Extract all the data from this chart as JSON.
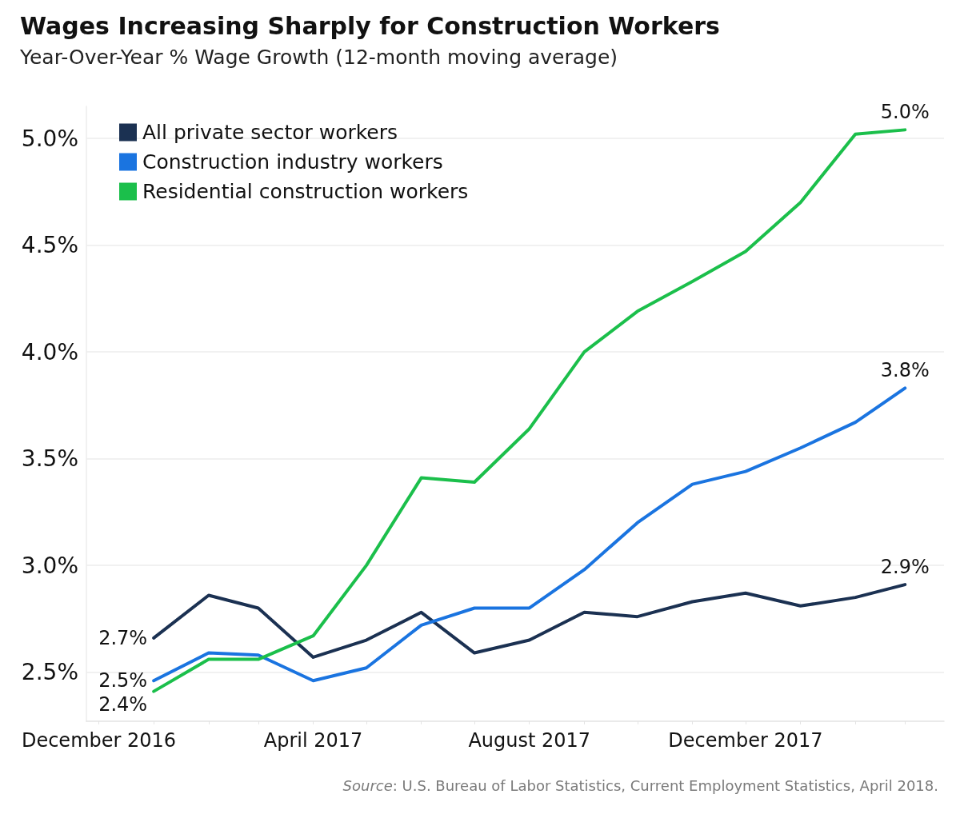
{
  "chart_data": {
    "type": "line",
    "title": "Wages Increasing Sharply for Construction Workers",
    "subtitle": "Year-Over-Year % Wage Growth (12-month moving average)",
    "x": [
      "2017-01",
      "2017-02",
      "2017-03",
      "2017-04",
      "2017-05",
      "2017-06",
      "2017-07",
      "2017-08",
      "2017-09",
      "2017-10",
      "2017-11",
      "2017-12",
      "2018-01",
      "2018-02",
      "2018-03"
    ],
    "series": [
      {
        "name": "All private sector workers",
        "color": "#1b3152",
        "values": [
          2.66,
          2.86,
          2.8,
          2.57,
          2.65,
          2.78,
          2.59,
          2.65,
          2.78,
          2.76,
          2.83,
          2.87,
          2.81,
          2.85,
          2.91
        ],
        "value_labels": [
          "2.7%",
          null,
          null,
          null,
          null,
          null,
          null,
          null,
          null,
          null,
          null,
          null,
          null,
          null,
          "2.9%"
        ]
      },
      {
        "name": "Construction industry workers",
        "color": "#1a74e0",
        "values": [
          2.46,
          2.59,
          2.58,
          2.46,
          2.52,
          2.72,
          2.8,
          2.8,
          2.98,
          3.2,
          3.38,
          3.44,
          3.55,
          3.67,
          3.83
        ],
        "value_labels": [
          "2.5%",
          null,
          null,
          null,
          null,
          null,
          null,
          null,
          null,
          null,
          null,
          null,
          null,
          null,
          "3.8%"
        ]
      },
      {
        "name": "Residential construction workers",
        "color": "#1bbf4b",
        "values": [
          2.41,
          2.56,
          2.56,
          2.67,
          3.0,
          3.41,
          3.39,
          3.64,
          4.0,
          4.19,
          4.33,
          4.47,
          4.7,
          5.02,
          5.04
        ],
        "value_labels": [
          "2.4%",
          null,
          null,
          null,
          null,
          null,
          null,
          null,
          null,
          null,
          null,
          null,
          null,
          null,
          "5.0%"
        ]
      }
    ],
    "xlim": [
      "2016-11-24",
      "2018-03-23"
    ],
    "xticks": [
      {
        "value": "2016-12",
        "label": "December 2016"
      },
      {
        "value": "2017-01",
        "label": null
      },
      {
        "value": "2017-02",
        "label": null
      },
      {
        "value": "2017-03",
        "label": null
      },
      {
        "value": "2017-04",
        "label": "April 2017"
      },
      {
        "value": "2017-05",
        "label": null
      },
      {
        "value": "2017-06",
        "label": null
      },
      {
        "value": "2017-07",
        "label": null
      },
      {
        "value": "2017-08",
        "label": "August 2017"
      },
      {
        "value": "2017-09",
        "label": null
      },
      {
        "value": "2017-10",
        "label": null
      },
      {
        "value": "2017-11",
        "label": null
      },
      {
        "value": "2017-12",
        "label": "December 2017"
      },
      {
        "value": "2018-01",
        "label": null
      },
      {
        "value": "2018-02",
        "label": null
      },
      {
        "value": "2018-03",
        "label": null
      }
    ],
    "ylim": [
      2.27,
      5.15
    ],
    "yticks": [
      {
        "value": 2.5,
        "label": "2.5%"
      },
      {
        "value": 3.0,
        "label": "3.0%"
      },
      {
        "value": 3.5,
        "label": "3.5%"
      },
      {
        "value": 4.0,
        "label": "4.0%"
      },
      {
        "value": 4.5,
        "label": "4.5%"
      },
      {
        "value": 5.0,
        "label": "5.0%"
      }
    ],
    "grid": "y",
    "legend": "top left",
    "marker": "none",
    "line_style": "solid",
    "annotations": [
      "Source: U.S. Bureau of Labor Statistics, Current Employment Statistics, April 2018."
    ]
  }
}
